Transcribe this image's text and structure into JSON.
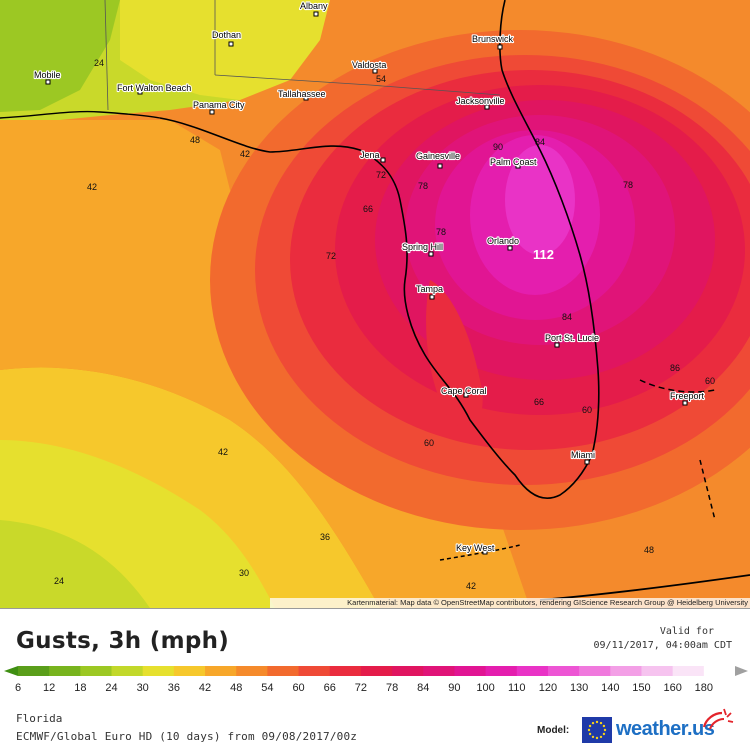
{
  "map": {
    "attribution": "Kartenmaterial: Map data © OpenStreetMap contributors, rendering GIScience Research Group @ Heidelberg University",
    "max_gust_marker": "112",
    "cities": [
      {
        "name": "Albany"
      },
      {
        "name": "Dothan"
      },
      {
        "name": "Brunswick"
      },
      {
        "name": "Valdosta"
      },
      {
        "name": "Mobile"
      },
      {
        "name": "Fort Walton Beach"
      },
      {
        "name": "Panama City"
      },
      {
        "name": "Tallahassee"
      },
      {
        "name": "Jacksonville"
      },
      {
        "name": "Jena"
      },
      {
        "name": "Gainesville"
      },
      {
        "name": "Palm Coast"
      },
      {
        "name": "Spring Hill"
      },
      {
        "name": "Orlando"
      },
      {
        "name": "Tampa"
      },
      {
        "name": "Port St. Lucie"
      },
      {
        "name": "Cape Coral"
      },
      {
        "name": "Freeport"
      },
      {
        "name": "Miami"
      },
      {
        "name": "Key West"
      }
    ],
    "contour_labels": [
      "24",
      "54",
      "48",
      "42",
      "84",
      "90",
      "78",
      "42",
      "72",
      "78",
      "66",
      "78",
      "72",
      "84",
      "86",
      "60",
      "66",
      "60",
      "60",
      "42",
      "36",
      "30",
      "24",
      "42",
      "48"
    ]
  },
  "header": {
    "title": "Gusts, 3h (mph)",
    "valid_label": "Valid for",
    "valid_time": "09/11/2017, 04:00am CDT"
  },
  "scale": {
    "ticks": [
      "6",
      "12",
      "18",
      "24",
      "30",
      "36",
      "42",
      "48",
      "54",
      "60",
      "66",
      "72",
      "78",
      "84",
      "90",
      "100",
      "110",
      "120",
      "130",
      "140",
      "150",
      "160",
      "180"
    ],
    "tick_values": [
      6,
      12,
      18,
      24,
      30,
      36,
      42,
      48,
      54,
      60,
      66,
      72,
      78,
      84,
      90,
      100,
      110,
      120,
      130,
      140,
      150,
      160,
      180
    ],
    "colors": [
      "#5a9e1a",
      "#78b41e",
      "#9cc823",
      "#c2d82a",
      "#e6e02e",
      "#f6c82c",
      "#f7a72a",
      "#f58a2b",
      "#f26a2e",
      "#ef4a36",
      "#ea2c3e",
      "#e41c4a",
      "#e01560",
      "#e01478",
      "#e11593",
      "#e41eae",
      "#e933c6",
      "#ed55d4",
      "#f079dd",
      "#f39fe6",
      "#f6c3ef",
      "#fae4f7",
      "#ffffff"
    ],
    "under_color": "#3f8f12",
    "over_color": "#a0a0a0"
  },
  "footer": {
    "region": "Florida",
    "model_run": "ECMWF/Global Euro HD (10 days) from 09/08/2017/00z",
    "model_label": "Model:",
    "brand": "weather.us"
  }
}
